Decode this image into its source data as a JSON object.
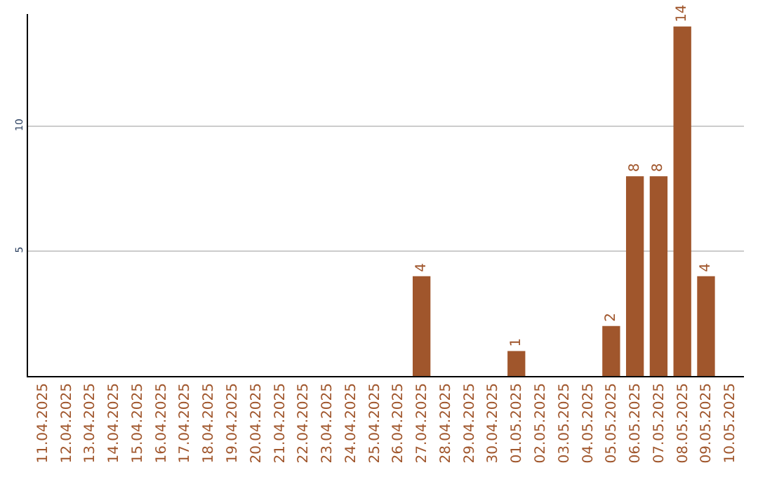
{
  "chart_data": {
    "type": "bar",
    "categories": [
      "11.04.2025",
      "12.04.2025",
      "13.04.2025",
      "14.04.2025",
      "15.04.2025",
      "16.04.2025",
      "17.04.2025",
      "18.04.2025",
      "19.04.2025",
      "20.04.2025",
      "21.04.2025",
      "22.04.2025",
      "23.04.2025",
      "24.04.2025",
      "25.04.2025",
      "26.04.2025",
      "27.04.2025",
      "28.04.2025",
      "29.04.2025",
      "30.04.2025",
      "01.05.2025",
      "02.05.2025",
      "03.05.2025",
      "04.05.2025",
      "05.05.2025",
      "06.05.2025",
      "07.05.2025",
      "08.05.2025",
      "09.05.2025",
      "10.05.2025"
    ],
    "values": [
      0,
      0,
      0,
      0,
      0,
      0,
      0,
      0,
      0,
      0,
      0,
      0,
      0,
      0,
      0,
      0,
      4,
      0,
      0,
      0,
      1,
      0,
      0,
      0,
      2,
      8,
      8,
      14,
      4,
      0
    ],
    "value_labels": [
      null,
      null,
      null,
      null,
      null,
      null,
      null,
      null,
      null,
      null,
      null,
      null,
      null,
      null,
      null,
      null,
      "4",
      null,
      null,
      null,
      "1",
      null,
      null,
      null,
      "2",
      "8",
      "8",
      "14",
      "4",
      null
    ],
    "color": "#a0562c",
    "ylim": [
      0,
      14.5
    ],
    "yticks": [
      5,
      10
    ],
    "grid": "y",
    "legend": false
  }
}
